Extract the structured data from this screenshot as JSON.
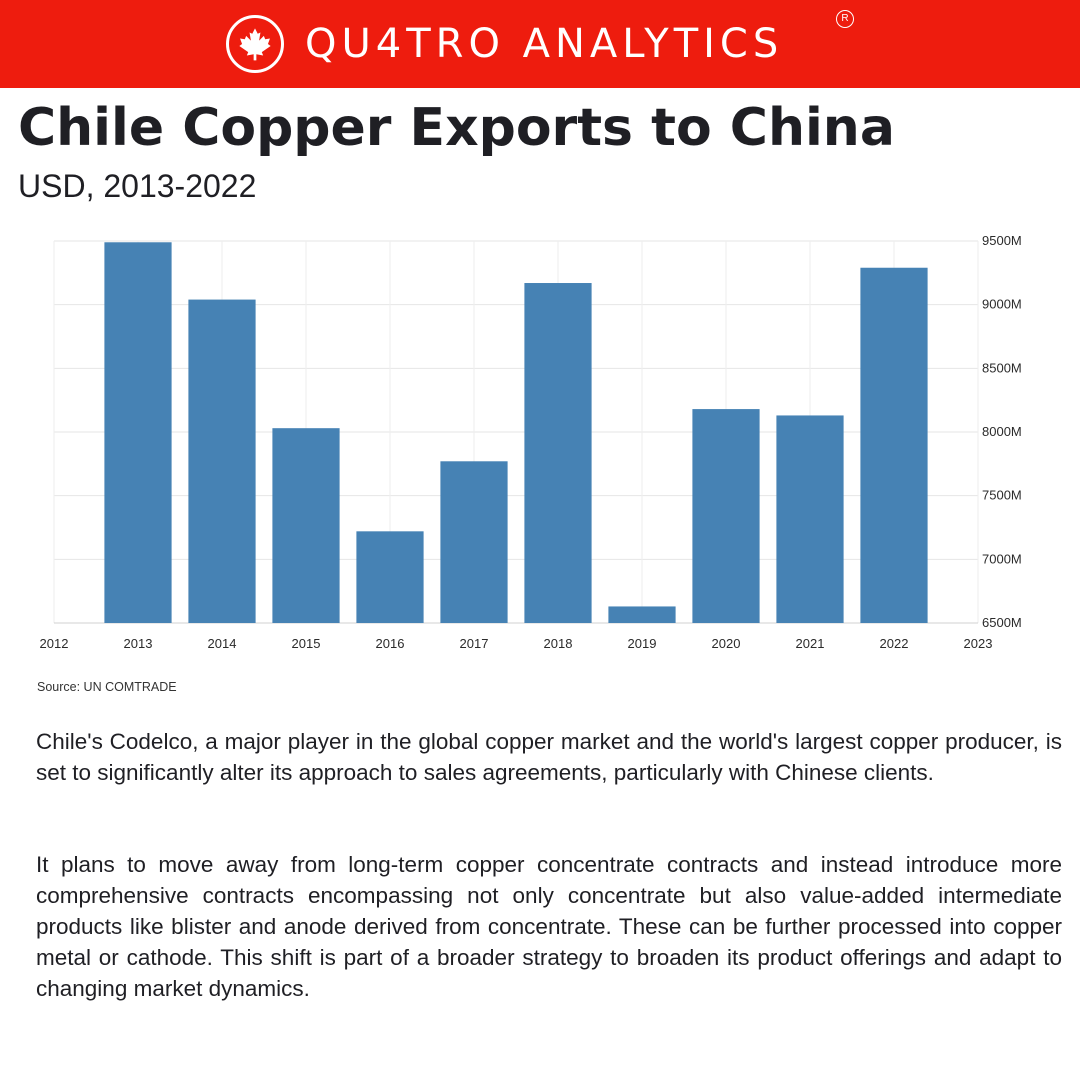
{
  "header": {
    "brand_name": "QU4TRO ANALYTICS",
    "registered_mark": "R",
    "logo_icon": "maple-leaf-icon",
    "banner_color": "#ee1c0e"
  },
  "title": "Chile Copper Exports to China",
  "subtitle": "USD, 2013-2022",
  "chart_data": {
    "type": "bar",
    "categories": [
      "2013",
      "2014",
      "2015",
      "2016",
      "2017",
      "2018",
      "2019",
      "2020",
      "2021",
      "2022"
    ],
    "values": [
      9490,
      9040,
      8030,
      7220,
      7770,
      9170,
      6630,
      8180,
      8130,
      9290
    ],
    "value_unit": "M",
    "bar_color": "#4682b4",
    "x_ticks": [
      "2012",
      "2013",
      "2014",
      "2015",
      "2016",
      "2017",
      "2018",
      "2019",
      "2020",
      "2021",
      "2022",
      "2023"
    ],
    "xlim": [
      2012,
      2023
    ],
    "y_ticks": [
      6500,
      7000,
      7500,
      8000,
      8500,
      9000,
      9500
    ],
    "y_tick_labels": [
      "6500M",
      "7000M",
      "7500M",
      "8000M",
      "8500M",
      "9000M",
      "9500M"
    ],
    "ylim": [
      6500,
      9500
    ],
    "y_axis_position": "right",
    "grid": true
  },
  "source": "Source: UN COMTRADE",
  "paragraphs": [
    "Chile's Codelco, a major player in the global copper market and the world's largest copper producer, is set to significantly alter its approach to sales agreements, particularly with Chinese clients.",
    "It plans to move away from long-term copper concentrate contracts and instead introduce more comprehensive contracts encompassing not only concentrate but also value-added intermediate products like blister and anode derived from concentrate. These can be further processed into copper metal or cathode. This shift is part of a broader strategy to broaden its product offerings and adapt to changing market dynamics."
  ]
}
